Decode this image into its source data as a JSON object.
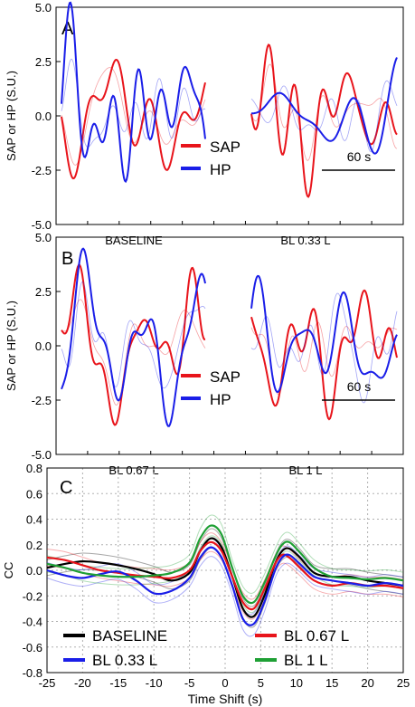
{
  "colors": {
    "sap": "#e8141b",
    "hp": "#1a1ee8",
    "baseline": "#000000",
    "bl033": "#1a1ee8",
    "bl067": "#e8141b",
    "bl1": "#1fa035",
    "frame": "#000000",
    "grid": "#b0b0b0"
  },
  "chart_data": [
    {
      "type": "line",
      "panel_letter": "A",
      "ylabel": "SAP or HP (S.U.)",
      "ylim": [
        -5,
        5
      ],
      "yticks": [
        "5.0",
        "2.5",
        "0.0",
        "-2.5",
        "-5.0"
      ],
      "ytick_values": [
        5,
        2.5,
        0,
        -2.5,
        -5
      ],
      "segment_labels": [
        "BASELINE",
        "BL 0.33 L"
      ],
      "legend": [
        "SAP",
        "HP"
      ],
      "scale_bar_label": "60 s",
      "seed": 11
    },
    {
      "type": "line",
      "panel_letter": "B",
      "ylabel": "SAP or HP (S.U.)",
      "ylim": [
        -5,
        5
      ],
      "yticks": [
        "5.0",
        "2.5",
        "0.0",
        "-2.5",
        "-5.0"
      ],
      "ytick_values": [
        5,
        2.5,
        0,
        -2.5,
        -5
      ],
      "segment_labels": [
        "BL 0.67 L",
        "BL 1 L"
      ],
      "legend": [
        "SAP",
        "HP"
      ],
      "scale_bar_label": "60 s",
      "seed": 29
    },
    {
      "type": "line",
      "panel_letter": "C",
      "xlabel": "Time Shift (s)",
      "ylabel": "CC",
      "xlim": [
        -25,
        25
      ],
      "ylim": [
        -0.8,
        0.8
      ],
      "xticks": [
        -25,
        -20,
        -15,
        -10,
        -5,
        0,
        5,
        10,
        15,
        20,
        25
      ],
      "yticks": [
        0.8,
        0.6,
        0.4,
        0.2,
        0.0,
        -0.2,
        -0.4,
        -0.6,
        -0.8
      ],
      "ytick_labels": [
        "0.8",
        "0.6",
        "0.4",
        "0.2",
        "0.0",
        "-0.2",
        "-0.4",
        "-0.6",
        "-0.8"
      ],
      "grid": true,
      "x": [
        -25,
        -22.5,
        -20,
        -17.5,
        -15,
        -12.5,
        -10,
        -7.5,
        -5,
        -3.5,
        -2,
        -0.5,
        1,
        2.5,
        4,
        5.5,
        7,
        8,
        9,
        10.5,
        12.5,
        15,
        17.5,
        20,
        22.5,
        25
      ],
      "series": [
        {
          "name": "BASELINE",
          "color_key": "baseline",
          "values": [
            0.02,
            0.05,
            0.07,
            0.06,
            0.04,
            0.01,
            -0.03,
            -0.08,
            -0.02,
            0.15,
            0.25,
            0.18,
            -0.05,
            -0.3,
            -0.36,
            -0.2,
            0.05,
            0.15,
            0.17,
            0.1,
            -0.02,
            -0.05,
            -0.05,
            -0.08,
            -0.1,
            -0.12
          ]
        },
        {
          "name": "BL 0.67 L",
          "color_key": "bl067",
          "values": [
            0.1,
            0.08,
            0.04,
            0.0,
            -0.02,
            -0.04,
            -0.05,
            -0.06,
            0.0,
            0.15,
            0.22,
            0.15,
            -0.05,
            -0.25,
            -0.3,
            -0.15,
            0.05,
            0.12,
            0.1,
            0.02,
            -0.08,
            -0.12,
            -0.1,
            -0.12,
            -0.12,
            -0.14
          ]
        },
        {
          "name": "BL 0.33 L",
          "color_key": "bl033",
          "values": [
            0.0,
            -0.04,
            -0.06,
            -0.03,
            -0.01,
            -0.08,
            -0.18,
            -0.16,
            -0.06,
            0.1,
            0.18,
            0.1,
            -0.12,
            -0.38,
            -0.42,
            -0.25,
            0.0,
            0.1,
            0.12,
            0.05,
            -0.05,
            -0.08,
            -0.1,
            -0.12,
            -0.1,
            -0.12
          ]
        },
        {
          "name": "BL 1 L",
          "color_key": "bl1",
          "values": [
            0.05,
            0.02,
            -0.02,
            -0.04,
            -0.05,
            -0.05,
            -0.04,
            -0.02,
            0.06,
            0.25,
            0.35,
            0.28,
            0.02,
            -0.2,
            -0.25,
            -0.1,
            0.1,
            0.2,
            0.22,
            0.14,
            0.02,
            -0.05,
            -0.06,
            -0.07,
            -0.06,
            -0.08
          ]
        }
      ],
      "legend": [
        "BASELINE",
        "BL 0.33 L",
        "BL 0.67 L",
        "BL 1 L"
      ]
    }
  ]
}
